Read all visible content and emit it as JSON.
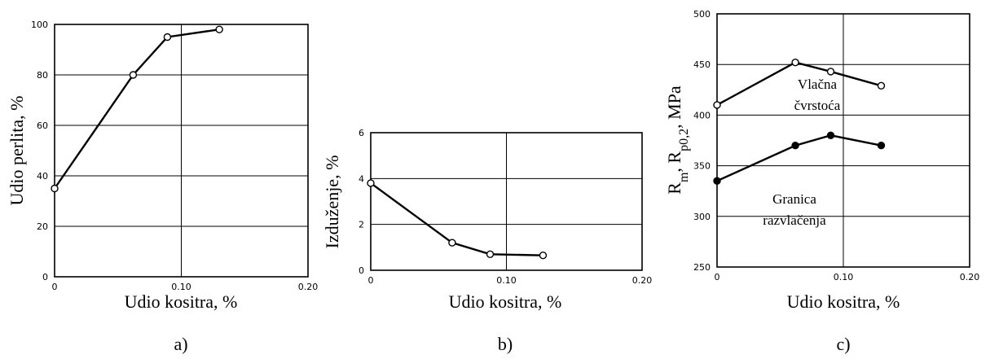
{
  "chart_data": [
    {
      "type": "line",
      "panel_label": "a)",
      "xlabel": "Udio kositra, %",
      "ylabel": "Udio perlita, %",
      "xlim": [
        0,
        0.2
      ],
      "ylim": [
        0,
        100
      ],
      "x_ticks": [
        "0",
        "0.10",
        "0.20"
      ],
      "y_ticks": [
        "0",
        "20",
        "40",
        "60",
        "80",
        "100"
      ],
      "grid": true,
      "series": [
        {
          "marker": "open",
          "x": [
            0,
            0.062,
            0.089,
            0.13
          ],
          "y": [
            35,
            80,
            95,
            98
          ]
        }
      ]
    },
    {
      "type": "line",
      "panel_label": "b)",
      "xlabel": "Udio kositra, %",
      "ylabel": "Izduženje, %",
      "xlim": [
        0,
        0.2
      ],
      "ylim": [
        0,
        6
      ],
      "x_ticks": [
        "0",
        "0.10",
        "0.20"
      ],
      "y_ticks": [
        "0",
        "2",
        "4",
        "6"
      ],
      "grid": true,
      "series": [
        {
          "marker": "open",
          "x": [
            0,
            0.06,
            0.088,
            0.127
          ],
          "y": [
            3.8,
            1.2,
            0.7,
            0.65
          ]
        }
      ]
    },
    {
      "type": "line",
      "panel_label": "c)",
      "xlabel": "Udio kositra, %",
      "ylabel_main": "R",
      "ylabel_sub1": "m",
      "ylabel_mid": ", R",
      "ylabel_sub2": "p0,2",
      "ylabel_tail": ", MPa",
      "xlim": [
        0,
        0.2
      ],
      "ylim": [
        250,
        500
      ],
      "x_ticks": [
        "0",
        "0.10",
        "0.20"
      ],
      "y_ticks": [
        "250",
        "300",
        "350",
        "400",
        "450",
        "500"
      ],
      "grid": true,
      "series": [
        {
          "label_line1": "Vlačna",
          "label_line2": "čvrstoća",
          "marker": "open",
          "x": [
            0,
            0.062,
            0.09,
            0.13
          ],
          "y": [
            410,
            452,
            443,
            429
          ]
        },
        {
          "label_line1": "Granica",
          "label_line2": "razvlačenja",
          "marker": "filled",
          "x": [
            0,
            0.062,
            0.09,
            0.13
          ],
          "y": [
            335,
            370,
            380,
            370
          ]
        }
      ]
    }
  ]
}
